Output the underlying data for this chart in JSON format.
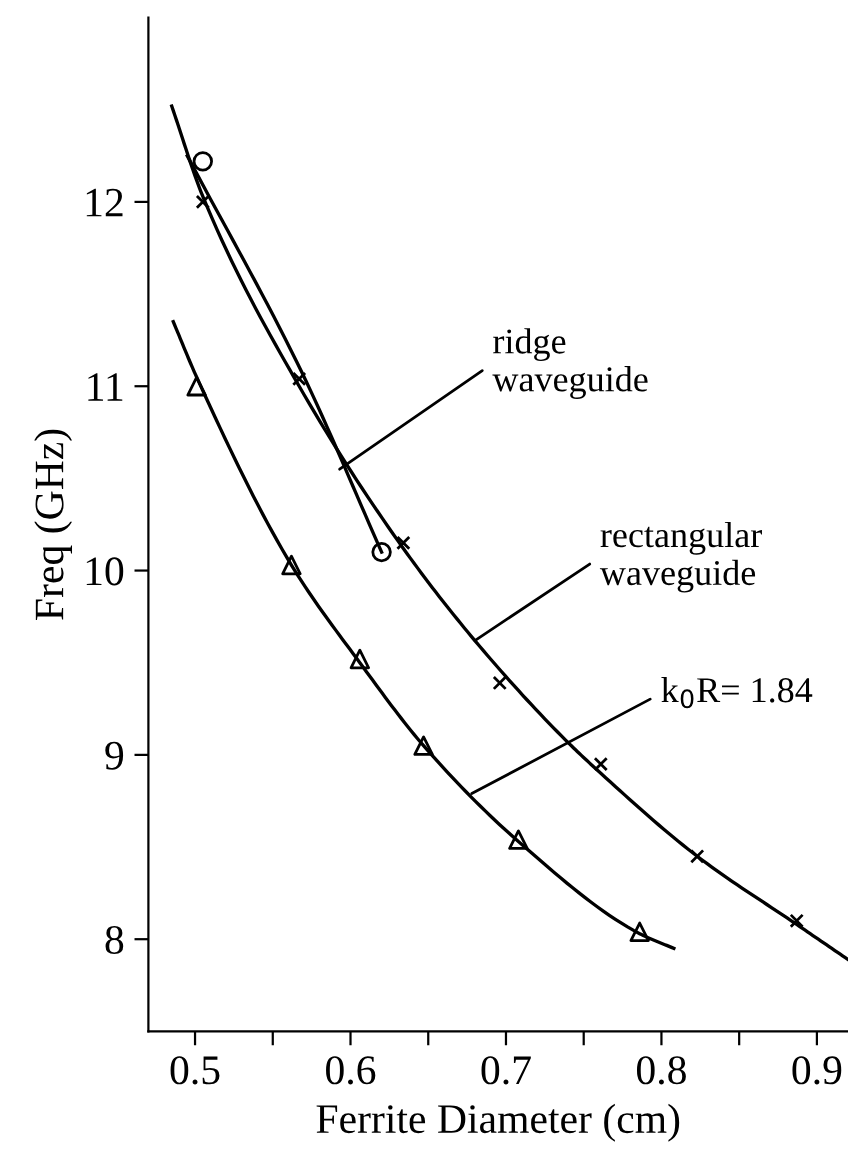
{
  "chart_data": {
    "type": "scatter",
    "xlabel": "Ferrite Diameter (cm)",
    "ylabel": "Freq (GHz)",
    "xlim": [
      0.47,
      0.92
    ],
    "ylim": [
      7.5,
      13.0
    ],
    "xticks": [
      0.5,
      {
        "value": 0.55,
        "label": null
      },
      0.6,
      {
        "value": 0.65,
        "label": null
      },
      0.7,
      {
        "value": 0.75,
        "label": null
      },
      0.8,
      {
        "value": 0.85,
        "label": null
      },
      0.9
    ],
    "yticks": [
      8,
      9,
      10,
      11,
      12
    ],
    "grid": false,
    "legend": false,
    "series": [
      {
        "marker": "circle",
        "color": "#000000",
        "x": [
          0.505,
          0.62
        ],
        "values": [
          12.22,
          10.1
        ]
      },
      {
        "marker": "cross",
        "color": "#000000",
        "x": [
          0.505,
          0.567,
          0.634,
          0.696,
          0.761,
          0.823,
          0.887
        ],
        "values": [
          12.0,
          11.04,
          10.15,
          9.39,
          8.95,
          8.45,
          8.1
        ]
      },
      {
        "marker": "triangle",
        "color": "#000000",
        "x": [
          0.501,
          0.562,
          0.606,
          0.647,
          0.708,
          0.786
        ],
        "values": [
          11.0,
          10.03,
          9.52,
          9.05,
          8.54,
          8.04
        ]
      },
      {
        "type": "line",
        "marker": "none",
        "line_style": "solid",
        "color": "#000000",
        "x": [
          0.495,
          0.569,
          0.62
        ],
        "values": [
          12.25,
          11.07,
          10.1
        ]
      },
      {
        "type": "line",
        "marker": "none",
        "line_style": "solid",
        "color": "#000000",
        "x": [
          0.485,
          0.505,
          0.567,
          0.634,
          0.68,
          0.736,
          0.761,
          0.823,
          0.887,
          0.92
        ],
        "values": [
          12.52,
          12.03,
          11.0,
          10.12,
          9.62,
          9.1,
          8.9,
          8.45,
          8.08,
          7.89
        ]
      },
      {
        "type": "line",
        "marker": "none",
        "line_style": "solid",
        "color": "#000000",
        "x": [
          0.486,
          0.501,
          0.562,
          0.606,
          0.647,
          0.708,
          0.786,
          0.808
        ],
        "values": [
          11.35,
          11.05,
          10.03,
          9.5,
          9.05,
          8.53,
          8.03,
          7.95
        ]
      }
    ],
    "annotations": [
      {
        "text": "ridge\nwaveguide",
        "x": 0.593,
        "y": 10.55
      },
      {
        "text": "rectangular\nwaveguide",
        "x": 0.68,
        "y": 9.62
      },
      {
        "text": "k$_{0}$R= 1.84",
        "x": 0.678,
        "y": 8.79
      }
    ]
  }
}
